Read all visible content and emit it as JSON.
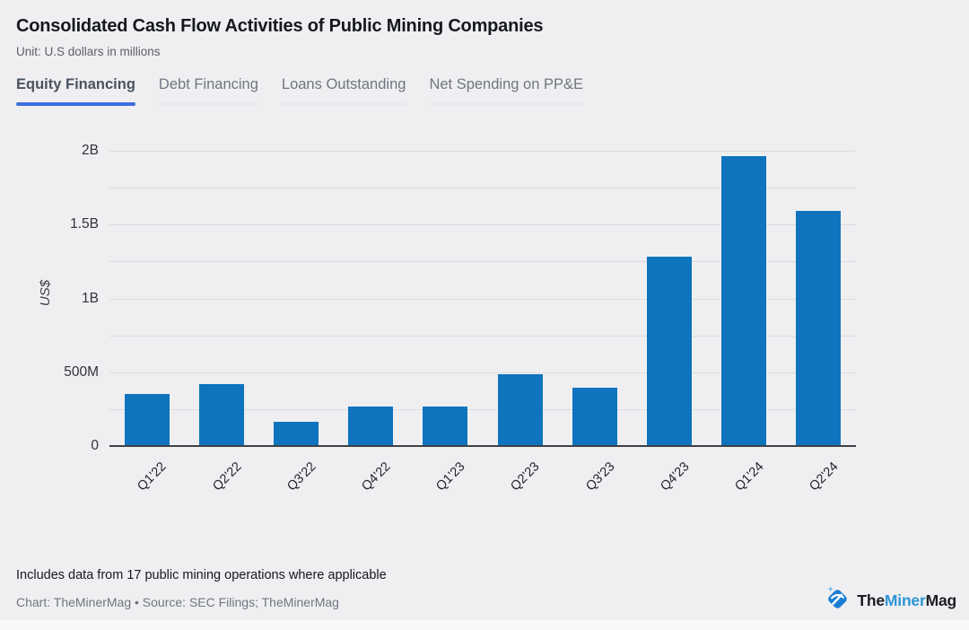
{
  "header": {
    "title": "Consolidated Cash Flow Activities of Public Mining Companies",
    "subtitle": "Unit: U.S dollars in millions"
  },
  "tabs": [
    {
      "label": "Equity Financing",
      "active": true
    },
    {
      "label": "Debt Financing",
      "active": false
    },
    {
      "label": "Loans Outstanding",
      "active": false
    },
    {
      "label": "Net Spending on PP&E",
      "active": false
    }
  ],
  "chart_data": {
    "type": "bar",
    "title": "Equity Financing",
    "categories": [
      "Q1'22",
      "Q2'22",
      "Q3'22",
      "Q4'22",
      "Q1'23",
      "Q2'23",
      "Q3'23",
      "Q4'23",
      "Q1'24",
      "Q2'24"
    ],
    "values": [
      360,
      425,
      170,
      275,
      275,
      490,
      400,
      1290,
      1970,
      1600
    ],
    "unit": "US$ millions",
    "xlabel": "",
    "ylabel": "US$",
    "ylim": [
      0,
      2000
    ],
    "grid_step": 250,
    "grid": true,
    "legend": "none",
    "yticks": [
      {
        "value": 0,
        "label": "0"
      },
      {
        "value": 500,
        "label": "500M"
      },
      {
        "value": 1000,
        "label": "1B"
      },
      {
        "value": 1500,
        "label": "1.5B"
      },
      {
        "value": 2000,
        "label": "2B"
      }
    ],
    "bar_color": "#0d74bd"
  },
  "footer": {
    "note": "Includes data from 17 public mining operations where applicable",
    "credits": "Chart: TheMinerMag • Source: SEC Filings; TheMinerMag",
    "brand": {
      "part1": "The",
      "part2": "Miner",
      "part3": "Mag"
    }
  },
  "colors": {
    "bar": "#0d74bd",
    "tab_active_underline": "#3d6fdf",
    "brand_blue": "#2d95d6",
    "background": "#efeff1"
  }
}
